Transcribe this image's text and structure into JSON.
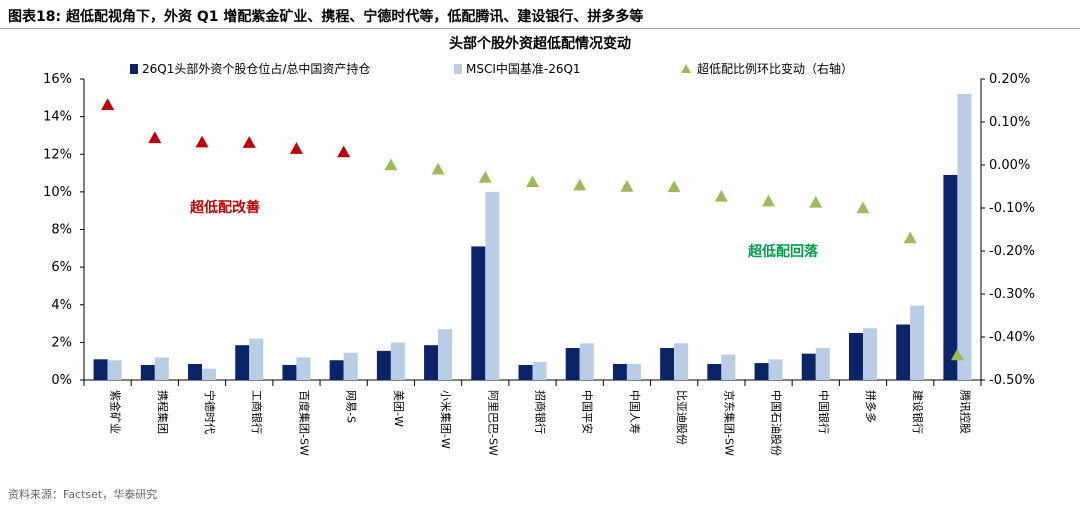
{
  "figure_title": "图表18:  超低配视角下，外资 Q1 增配紫金矿业、携程、宁德时代等，低配腾讯、建设银行、拼多多等",
  "source": "资料来源：Factset，华泰研究",
  "chart_data": {
    "type": "bar",
    "title": "头部个股外资超低配情况变动",
    "categories": [
      "紫金矿业",
      "携程集团",
      "宁德时代",
      "工商银行",
      "百度集团-SW",
      "网易-S",
      "美团-W",
      "小米集团-W",
      "阿里巴巴-SW",
      "招商银行",
      "中国平安",
      "中国人寿",
      "比亚迪股份",
      "京东集团-SW",
      "中国石油股份",
      "中国银行",
      "拼多多",
      "建设银行",
      "腾讯控股"
    ],
    "series": [
      {
        "name": "26Q1头部外资个股仓位占/总中国资产持仓",
        "type": "bar",
        "axis": "left",
        "color": "#0b2467",
        "values": [
          1.1,
          0.8,
          0.85,
          1.85,
          0.8,
          1.05,
          1.55,
          1.85,
          7.1,
          0.8,
          1.7,
          0.85,
          1.7,
          0.85,
          0.9,
          1.4,
          2.5,
          2.95,
          10.9
        ]
      },
      {
        "name": "MSCI中国基准-26Q1",
        "type": "bar",
        "axis": "left",
        "color": "#b9cde5",
        "values": [
          1.05,
          1.2,
          0.6,
          2.2,
          1.2,
          1.45,
          2.0,
          2.7,
          10.0,
          0.95,
          1.95,
          0.85,
          1.95,
          1.35,
          1.1,
          1.7,
          2.75,
          3.95,
          15.2
        ]
      },
      {
        "name": "超低配比例环比变动（右轴）",
        "type": "scatter",
        "axis": "right",
        "values": [
          0.14,
          0.063,
          0.053,
          0.052,
          0.038,
          0.03,
          0.0,
          -0.01,
          -0.029,
          -0.039,
          -0.047,
          -0.05,
          -0.051,
          -0.073,
          -0.084,
          -0.087,
          -0.1,
          -0.17,
          -0.442
        ]
      }
    ],
    "marker_colors": [
      "#c00000",
      "#c00000",
      "#c00000",
      "#c00000",
      "#c00000",
      "#c00000",
      "#9bbb59",
      "#9bbb59",
      "#9bbb59",
      "#9bbb59",
      "#9bbb59",
      "#9bbb59",
      "#9bbb59",
      "#9bbb59",
      "#9bbb59",
      "#9bbb59",
      "#9bbb59",
      "#9bbb59",
      "#9bbb59"
    ],
    "y_left": {
      "min": 0,
      "max": 16,
      "step": 2,
      "format": "percent0"
    },
    "y_right": {
      "min": -0.5,
      "max": 0.2,
      "step": 0.1,
      "format": "percent2"
    },
    "legend": "top",
    "annotations": [
      {
        "text": "超低配改善",
        "color": "#c00000"
      },
      {
        "text": "超低配回落",
        "color": "#00a04b"
      }
    ],
    "grid": false
  }
}
